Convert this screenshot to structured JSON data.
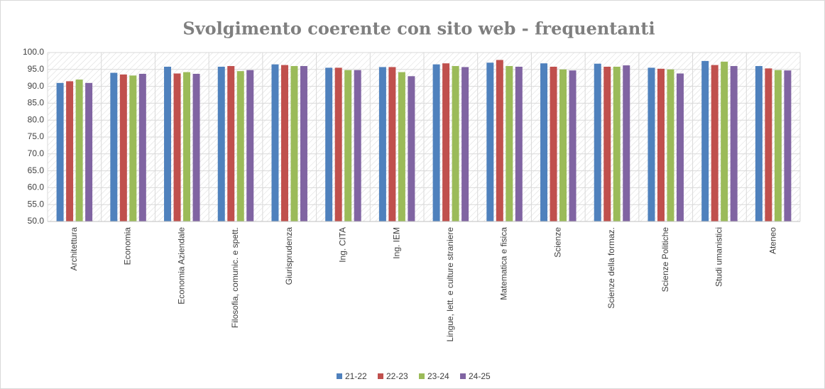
{
  "chart_data": {
    "type": "bar",
    "title": "Svolgimento coerente con sito web - frequentanti",
    "categories": [
      "Architettura",
      "Economia",
      "Economia Aziendale",
      "Filosofia, comunic. e spett.",
      "Giurisprudenza",
      "Ing. CITA",
      "Ing. IEM",
      "Lingue, lett. e culture straniere",
      "Matematica e fisica",
      "Scienze",
      "Scienze della formaz.",
      "Scienze Politiche",
      "Studi umanistici",
      "Ateneo"
    ],
    "series": [
      {
        "name": "21-22",
        "color": "#4f81bd",
        "values": [
          91.0,
          94.0,
          95.8,
          95.8,
          96.5,
          95.5,
          95.7,
          96.5,
          97.0,
          96.8,
          96.7,
          95.5,
          97.5,
          96.0
        ]
      },
      {
        "name": "22-23",
        "color": "#c0504d",
        "values": [
          91.5,
          93.5,
          93.8,
          96.0,
          96.3,
          95.5,
          95.7,
          96.8,
          97.8,
          95.8,
          95.8,
          95.2,
          96.3,
          95.3
        ]
      },
      {
        "name": "23-24",
        "color": "#9bbb59",
        "values": [
          92.0,
          93.2,
          94.2,
          94.5,
          96.0,
          94.8,
          94.2,
          96.0,
          96.0,
          95.0,
          95.8,
          95.0,
          97.3,
          94.8
        ]
      },
      {
        "name": "24-25",
        "color": "#8064a2",
        "values": [
          91.0,
          93.7,
          93.7,
          94.8,
          96.0,
          94.8,
          93.0,
          95.7,
          95.8,
          94.7,
          96.2,
          93.8,
          96.0,
          94.7
        ]
      }
    ],
    "ylim": [
      50,
      100
    ],
    "yticks": [
      {
        "value": 50,
        "label": "50.0"
      },
      {
        "value": 55,
        "label": "55.0"
      },
      {
        "value": 60,
        "label": "60.0"
      },
      {
        "value": 65,
        "label": "65.0"
      },
      {
        "value": 70,
        "label": "70.0"
      },
      {
        "value": 75,
        "label": "75.0"
      },
      {
        "value": 80,
        "label": "80.0"
      },
      {
        "value": 85,
        "label": "85.0"
      },
      {
        "value": 90,
        "label": "90.0"
      },
      {
        "value": 95,
        "label": "95.0"
      },
      {
        "value": 100,
        "label": "100.0"
      }
    ],
    "grid": true,
    "legend": "bottom"
  }
}
